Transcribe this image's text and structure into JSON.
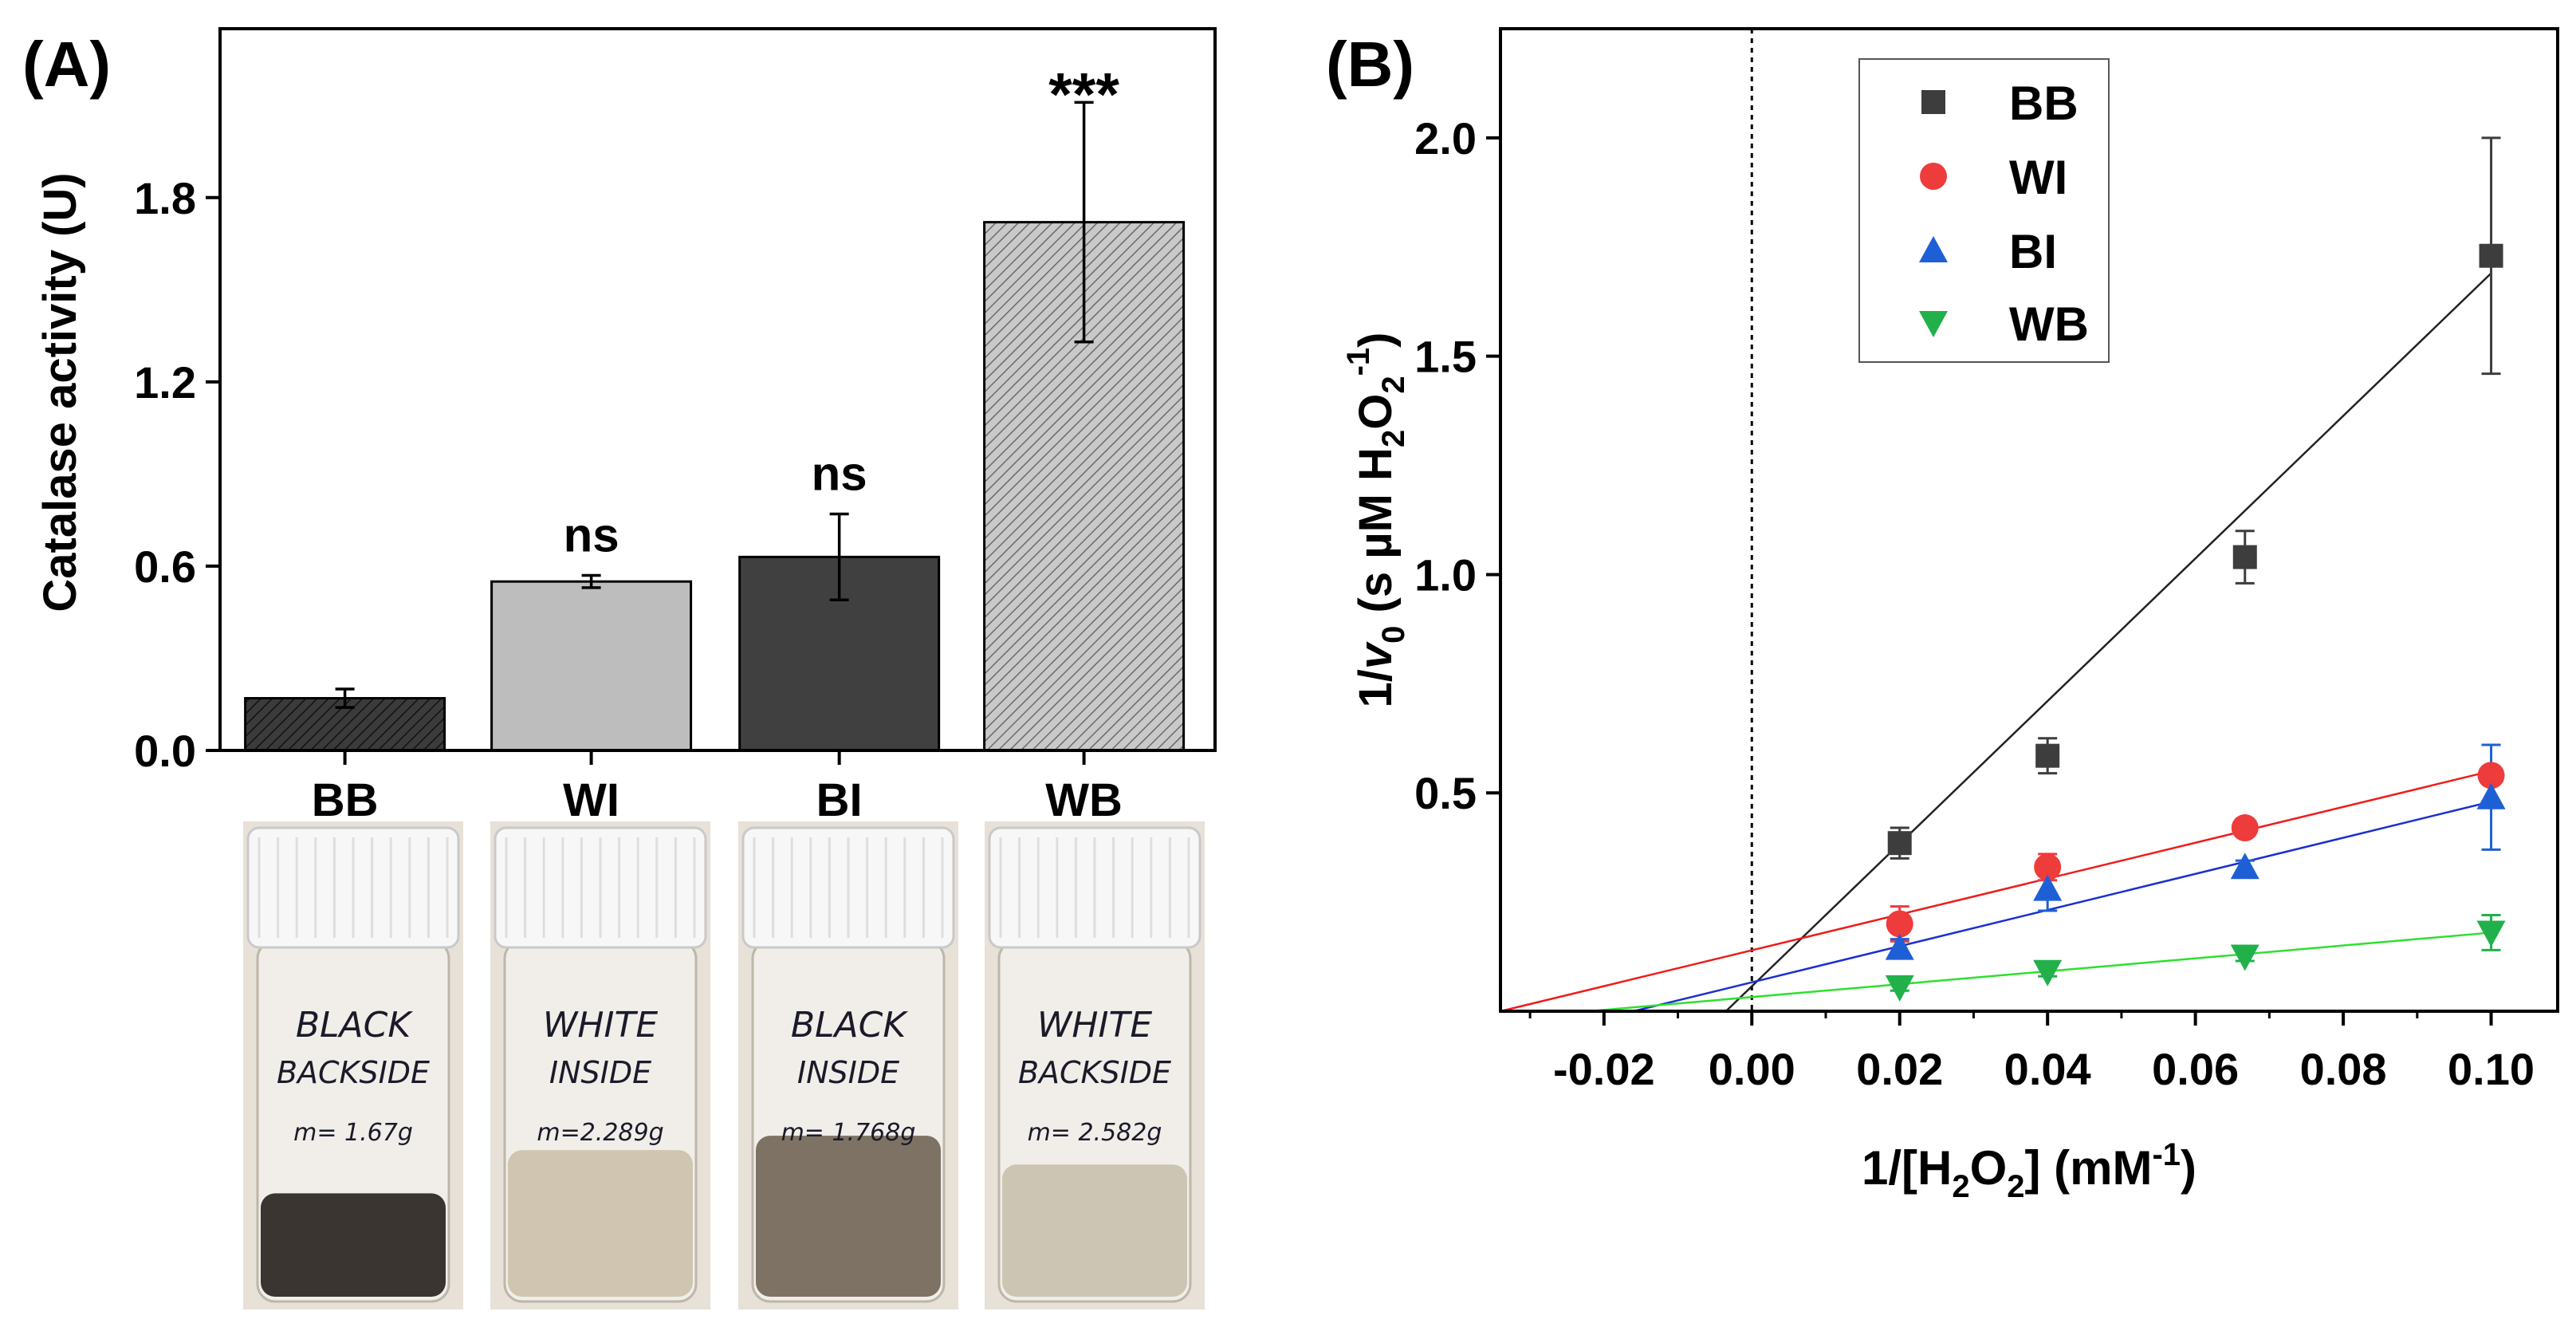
{
  "colors": {
    "BB": "#3d3d3d",
    "WI": "#ee3b3b",
    "BI": "#1f5fd6",
    "WB": "#22b04b"
  },
  "chart_data": [
    {
      "id": "A",
      "panel_label": "(A)",
      "type": "bar",
      "categories": [
        "BB",
        "WI",
        "BI",
        "WB"
      ],
      "values": [
        0.17,
        0.55,
        0.63,
        1.72
      ],
      "errors": [
        0.03,
        0.02,
        0.14,
        0.39
      ],
      "annotations": [
        "",
        "ns",
        "ns",
        "***"
      ],
      "bar_fills": [
        "#3b3b3b",
        "#bdbdbd",
        "#404040",
        "#b5b5b5"
      ],
      "bar_hatched": [
        true,
        false,
        false,
        true
      ],
      "ylabel": "Catalase activity (U)",
      "ylim": [
        0,
        2.35
      ],
      "yticks": [
        0.0,
        0.6,
        1.2,
        1.8
      ],
      "ytick_labels": [
        "0.0",
        "0.6",
        "1.2",
        "1.8"
      ],
      "photos": [
        {
          "sample": "BB",
          "label_lines": [
            "BLACK",
            "BACKSIDE",
            "m= 1.67g"
          ],
          "powder": "#3a3530",
          "powder_level": 0.3
        },
        {
          "sample": "WI",
          "label_lines": [
            "WHITE",
            "INSIDE",
            "m=2.289g"
          ],
          "powder": "#cfc5b0",
          "powder_level": 0.42
        },
        {
          "sample": "BI",
          "label_lines": [
            "BLACK",
            "INSIDE",
            "m= 1.768g"
          ],
          "powder": "#7e7264",
          "powder_level": 0.46
        },
        {
          "sample": "WB",
          "label_lines": [
            "WHITE",
            "BACKSIDE",
            "m= 2.582g"
          ],
          "powder": "#cdc5b3",
          "powder_level": 0.38
        }
      ]
    },
    {
      "id": "B",
      "panel_label": "(B)",
      "type": "scatter",
      "title": "",
      "xlabel_parts": [
        "1/[H",
        "2",
        "O",
        "2",
        "] (mM",
        "-1",
        ")"
      ],
      "ylabel_parts": [
        "1/",
        "v",
        "0",
        " (s µM H",
        "2",
        "O",
        "2",
        "-1",
        ")"
      ],
      "xlim": [
        -0.034,
        0.109
      ],
      "ylim": [
        0.0,
        2.25
      ],
      "xticks": [
        -0.02,
        0.0,
        0.02,
        0.04,
        0.06,
        0.08,
        0.1
      ],
      "xtick_labels": [
        "-0.02",
        "0.00",
        "0.02",
        "0.04",
        "0.06",
        "0.08",
        "0.10"
      ],
      "yticks": [
        0.5,
        1.0,
        1.5,
        2.0
      ],
      "ytick_labels": [
        "0.5",
        "1.0",
        "1.5",
        "2.0"
      ],
      "zero_line": true,
      "legend_position": "top-left",
      "series": [
        {
          "name": "BB",
          "marker": "square",
          "x": [
            0.02,
            0.04,
            0.0667,
            0.1
          ],
          "y": [
            0.385,
            0.585,
            1.04,
            1.73
          ],
          "err": [
            0.035,
            0.04,
            0.06,
            0.27
          ],
          "fit": [
            -0.0035,
            0.1,
            1.69
          ]
        },
        {
          "name": "WI",
          "marker": "circle",
          "x": [
            0.02,
            0.04,
            0.0667,
            0.1
          ],
          "y": [
            0.2,
            0.33,
            0.42,
            0.54
          ],
          "err": [
            0.04,
            0.03,
            0.02,
            0.02
          ],
          "fit": [
            -0.034,
            0.1,
            0.55
          ]
        },
        {
          "name": "BI",
          "marker": "triangle-up",
          "x": [
            0.02,
            0.04,
            0.0667,
            0.1
          ],
          "y": [
            0.145,
            0.28,
            0.33,
            0.49
          ],
          "err": [
            0.02,
            0.05,
            0.015,
            0.12
          ],
          "fit": [
            -0.016,
            0.1,
            0.48
          ]
        },
        {
          "name": "WB",
          "marker": "triangle-down",
          "x": [
            0.02,
            0.04,
            0.0667,
            0.1
          ],
          "y": [
            0.055,
            0.09,
            0.125,
            0.18
          ],
          "err": [
            0.008,
            0.01,
            0.01,
            0.04
          ],
          "fit": [
            -0.022,
            0.1,
            0.18
          ]
        }
      ]
    }
  ]
}
